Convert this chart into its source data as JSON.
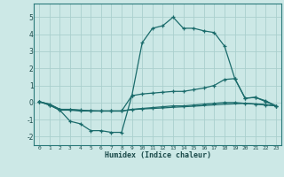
{
  "xlabel": "Humidex (Indice chaleur)",
  "background_color": "#cce8e6",
  "grid_color": "#aacfcd",
  "line_color": "#1a6b6b",
  "xlim": [
    -0.5,
    23.5
  ],
  "ylim": [
    -2.5,
    5.8
  ],
  "xticks": [
    0,
    1,
    2,
    3,
    4,
    5,
    6,
    7,
    8,
    9,
    10,
    11,
    12,
    13,
    14,
    15,
    16,
    17,
    18,
    19,
    20,
    21,
    22,
    23
  ],
  "yticks": [
    -2,
    -1,
    0,
    1,
    2,
    3,
    4,
    5
  ],
  "line1_x": [
    0,
    1,
    2,
    3,
    4,
    5,
    6,
    7,
    8,
    9,
    10,
    11,
    12,
    13,
    14,
    15,
    16,
    17,
    18,
    19,
    20,
    21,
    22,
    23
  ],
  "line1_y": [
    0.05,
    -0.15,
    -0.45,
    -1.1,
    -1.25,
    -1.65,
    -1.65,
    -1.75,
    -1.75,
    0.4,
    3.5,
    4.35,
    4.5,
    5.0,
    4.35,
    4.35,
    4.2,
    4.1,
    3.3,
    1.4,
    0.25,
    0.3,
    0.05,
    -0.2
  ],
  "line2_x": [
    0,
    1,
    2,
    3,
    4,
    5,
    6,
    7,
    8,
    9,
    10,
    11,
    12,
    13,
    14,
    15,
    16,
    17,
    18,
    19,
    20,
    21,
    22,
    23
  ],
  "line2_y": [
    0.05,
    -0.15,
    -0.45,
    -0.45,
    -0.5,
    -0.5,
    -0.5,
    -0.5,
    -0.5,
    0.4,
    0.5,
    0.55,
    0.6,
    0.65,
    0.65,
    0.75,
    0.85,
    1.0,
    1.35,
    1.4,
    0.25,
    0.3,
    0.1,
    -0.2
  ],
  "line3_x": [
    0,
    1,
    2,
    3,
    4,
    5,
    6,
    7,
    8,
    9,
    10,
    11,
    12,
    13,
    14,
    15,
    16,
    17,
    18,
    19,
    20,
    21,
    22,
    23
  ],
  "line3_y": [
    0.05,
    -0.1,
    -0.4,
    -0.4,
    -0.45,
    -0.5,
    -0.5,
    -0.5,
    -0.5,
    -0.4,
    -0.35,
    -0.3,
    -0.25,
    -0.2,
    -0.2,
    -0.15,
    -0.1,
    -0.05,
    0.0,
    0.0,
    -0.05,
    -0.1,
    -0.15,
    -0.2
  ],
  "line4_x": [
    0,
    1,
    2,
    3,
    4,
    5,
    6,
    7,
    8,
    9,
    10,
    11,
    12,
    13,
    14,
    15,
    16,
    17,
    18,
    19,
    20,
    21,
    22,
    23
  ],
  "line4_y": [
    0.05,
    -0.1,
    -0.4,
    -0.42,
    -0.45,
    -0.48,
    -0.5,
    -0.5,
    -0.5,
    -0.42,
    -0.38,
    -0.35,
    -0.32,
    -0.28,
    -0.25,
    -0.22,
    -0.18,
    -0.14,
    -0.1,
    -0.08,
    -0.05,
    -0.08,
    -0.12,
    -0.2
  ]
}
